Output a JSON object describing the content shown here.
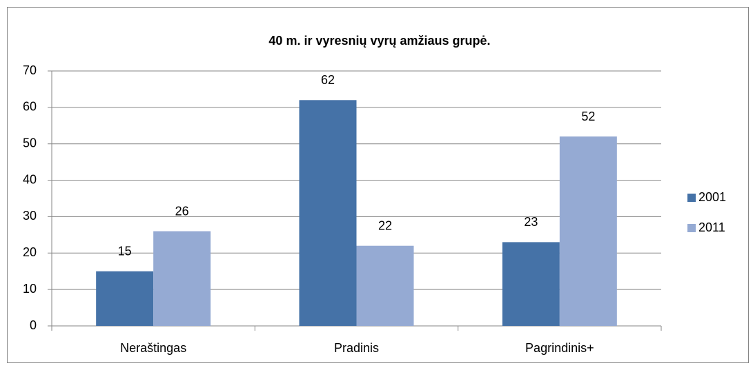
{
  "chart_data": {
    "type": "bar",
    "title": "40 m. ir vyresnių vyrų amžiaus grupė.",
    "categories": [
      "Neraštingas",
      "Pradinis",
      "Pagrindinis+"
    ],
    "series": [
      {
        "name": "2001",
        "color": "#4572a7",
        "values": [
          15,
          62,
          23
        ]
      },
      {
        "name": "2011",
        "color": "#95aad3",
        "values": [
          26,
          22,
          52
        ]
      }
    ],
    "ylim": [
      0,
      70
    ],
    "yticks": [
      0,
      10,
      20,
      30,
      40,
      50,
      60,
      70
    ],
    "grid": true,
    "legend": "right"
  }
}
